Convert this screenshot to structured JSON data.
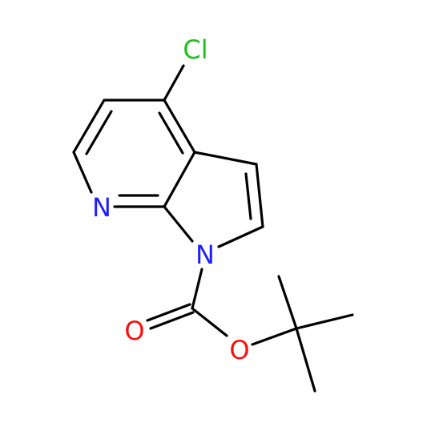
{
  "atoms": [
    {
      "label": "Cl"
    },
    {
      "label": "N"
    },
    {
      "label": "N"
    },
    {
      "label": "O"
    },
    {
      "label": "O"
    }
  ]
}
